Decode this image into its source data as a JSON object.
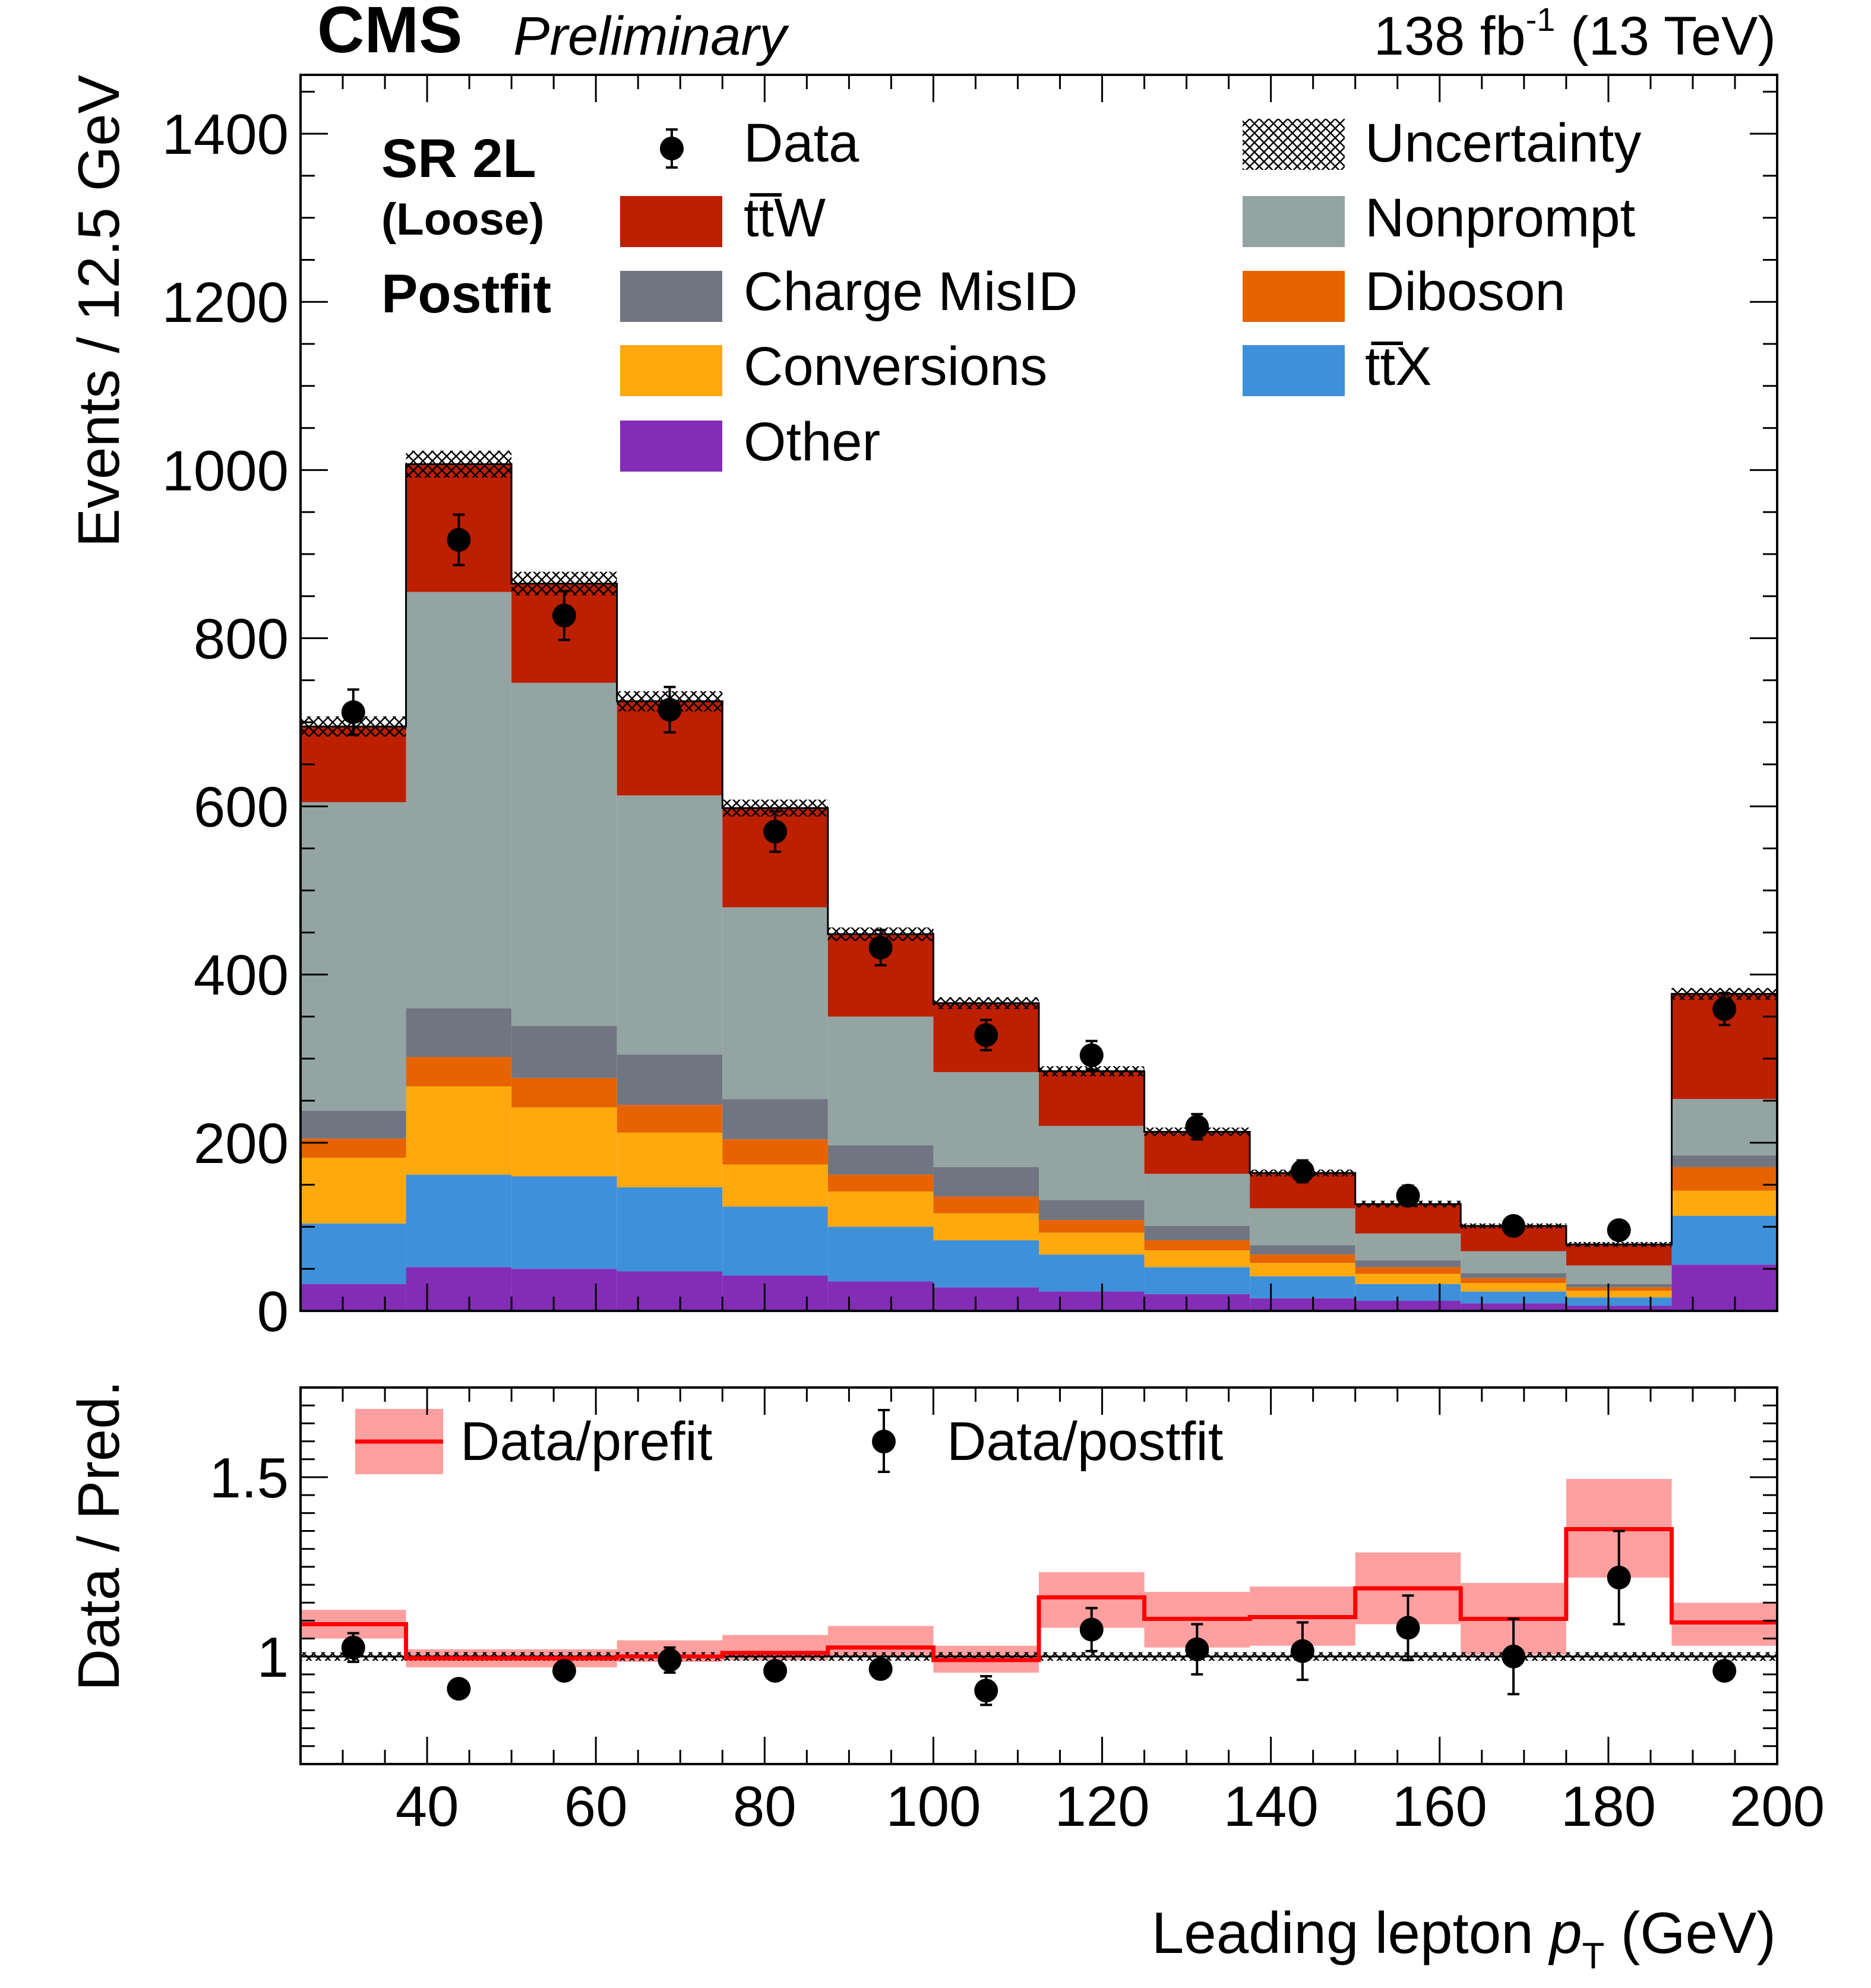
{
  "header": {
    "cms": "CMS",
    "preliminary": "Preliminary",
    "lumi_value": "138 fb",
    "lumi_exp": "-1",
    "energy": "(13 TeV)"
  },
  "region": {
    "line1": "SR 2L",
    "line2": "(Loose)",
    "line3": "Postfit"
  },
  "legend": {
    "data": "Data",
    "uncertainty": "Uncertainty",
    "ttw": "tt̅W",
    "nonprompt": "Nonprompt",
    "chargemisid": "Charge MisID",
    "diboson": "Diboson",
    "conversions": "Conversions",
    "ttx": "tt̅X",
    "other": "Other",
    "ratio_prefit": "Data/prefit",
    "ratio_postfit": "Data/postfit"
  },
  "axes": {
    "top_ylabel": "Events / 12.5 GeV",
    "bottom_ylabel": "Data / Pred.",
    "xlabel_main": "Leading lepton ",
    "xlabel_var": "p",
    "xlabel_sub": "T",
    "xlabel_unit": " (GeV)"
  },
  "colors": {
    "ttw": "#bd1f01",
    "nonprompt": "#94a4a2",
    "chargemisid": "#717581",
    "diboson": "#e76300",
    "conversions": "#ffa90e",
    "ttx": "#3f90da",
    "other": "#832db6",
    "prefit_line": "#ff0000",
    "prefit_band": "#ff9f9f"
  },
  "chart_data": [
    {
      "type": "bar",
      "stacked": true,
      "bin_edges": [
        25,
        37.5,
        50,
        62.5,
        75,
        87.5,
        100,
        112.5,
        125,
        137.5,
        150,
        162.5,
        175,
        187.5,
        200
      ],
      "xlim": [
        25,
        200
      ],
      "ylim": [
        0,
        1470
      ],
      "yticks": [
        0,
        200,
        400,
        600,
        800,
        1000,
        1200,
        1400
      ],
      "ylabel": "Events / 12.5 GeV",
      "legend_position": "top",
      "series": [
        {
          "name": "Other",
          "key": "other",
          "values": [
            32,
            52,
            50,
            47,
            42,
            35,
            28,
            23,
            20,
            15,
            12,
            9,
            6,
            55
          ]
        },
        {
          "name": "tt̅X",
          "key": "ttx",
          "values": [
            72,
            110,
            110,
            100,
            82,
            65,
            56,
            44,
            32,
            26,
            20,
            14,
            10,
            58
          ]
        },
        {
          "name": "Conversions",
          "key": "conversions",
          "values": [
            78,
            105,
            82,
            65,
            50,
            42,
            32,
            26,
            20,
            16,
            12,
            10,
            8,
            30
          ]
        },
        {
          "name": "Diboson",
          "key": "diboson",
          "values": [
            23,
            35,
            35,
            33,
            30,
            20,
            20,
            15,
            12,
            10,
            8,
            6,
            4,
            28
          ]
        },
        {
          "name": "Charge MisID",
          "key": "chargemisid",
          "values": [
            33,
            58,
            62,
            60,
            48,
            35,
            35,
            24,
            17,
            11,
            8,
            6,
            4,
            14
          ]
        },
        {
          "name": "Nonprompt",
          "key": "nonprompt",
          "values": [
            367,
            495,
            408,
            308,
            228,
            153,
            113,
            88,
            62,
            44,
            32,
            26,
            22,
            67
          ]
        },
        {
          "name": "tt̅W",
          "key": "ttw",
          "values": [
            90,
            152,
            118,
            112,
            118,
            98,
            82,
            65,
            50,
            42,
            35,
            30,
            25,
            125
          ]
        }
      ],
      "data": {
        "name": "Data",
        "x": [
          31.25,
          43.75,
          56.25,
          68.75,
          81.25,
          93.75,
          106.25,
          118.75,
          131.25,
          143.75,
          156.25,
          168.75,
          181.25,
          193.75
        ],
        "y": [
          712,
          917,
          827,
          715,
          570,
          432,
          328,
          304,
          219,
          166,
          137,
          101,
          96,
          359
        ],
        "yerr": [
          27,
          30,
          29,
          27,
          24,
          21,
          18,
          17,
          15,
          13,
          12,
          10,
          10,
          19
        ]
      },
      "total_uncertainty": [
        12,
        16,
        14,
        12,
        10,
        8,
        7,
        6,
        5,
        4,
        4,
        3,
        3,
        7
      ]
    },
    {
      "type": "line",
      "bin_edges": [
        25,
        37.5,
        50,
        62.5,
        75,
        87.5,
        100,
        112.5,
        125,
        137.5,
        150,
        162.5,
        175,
        187.5,
        200
      ],
      "xlim": [
        25,
        200
      ],
      "ylim": [
        0.7,
        1.75
      ],
      "yticks": [
        1,
        1.5
      ],
      "ytick_labels": [
        "1",
        "1.5"
      ],
      "xticks": [
        40,
        60,
        80,
        100,
        120,
        140,
        160,
        180,
        200
      ],
      "ylabel": "Data / Pred.",
      "xlabel": "Leading lepton pT (GeV)",
      "legend_position": "top-left",
      "prefit": {
        "name": "Data/prefit",
        "values": [
          1.09,
          0.995,
          0.995,
          1.0,
          1.01,
          1.025,
          0.99,
          1.165,
          1.105,
          1.11,
          1.19,
          1.105,
          1.355,
          1.095
        ],
        "band_low": [
          1.05,
          0.97,
          0.97,
          0.985,
          0.99,
          1.0,
          0.955,
          1.08,
          1.025,
          1.03,
          1.09,
          1.005,
          1.22,
          1.03
        ],
        "band_high": [
          1.13,
          1.02,
          1.02,
          1.045,
          1.06,
          1.085,
          1.03,
          1.235,
          1.18,
          1.195,
          1.29,
          1.205,
          1.495,
          1.15
        ]
      },
      "postfit": {
        "name": "Data/postfit",
        "x": [
          31.25,
          43.75,
          56.25,
          68.75,
          81.25,
          93.75,
          106.25,
          118.75,
          131.25,
          143.75,
          156.25,
          168.75,
          181.25,
          193.75
        ],
        "y": [
          1.025,
          0.91,
          0.96,
          0.99,
          0.96,
          0.965,
          0.905,
          1.075,
          1.02,
          1.015,
          1.08,
          1.0,
          1.22,
          0.96
        ],
        "yerr": [
          0.04,
          0.0,
          0.0,
          0.035,
          0.0,
          0.0,
          0.04,
          0.06,
          0.07,
          0.08,
          0.09,
          0.105,
          0.13,
          0.0
        ]
      }
    }
  ]
}
